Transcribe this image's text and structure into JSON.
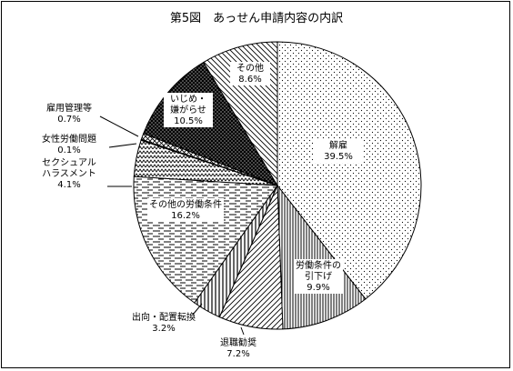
{
  "chart_data": {
    "type": "pie",
    "title": "第5図　あっせん申請内容の内訳",
    "unit": "%",
    "slices": [
      {
        "name": "解雇",
        "value": 39.5,
        "value_label": "39.5%"
      },
      {
        "name": "労働条件の\n引下げ",
        "value": 9.9,
        "value_label": "9.9%"
      },
      {
        "name": "退職勧奨",
        "value": 7.2,
        "value_label": "7.2%"
      },
      {
        "name": "出向・配置転換",
        "value": 3.2,
        "value_label": "3.2%"
      },
      {
        "name": "その他の労働条件",
        "value": 16.2,
        "value_label": "16.2%"
      },
      {
        "name": "セクシュアル\nハラスメント",
        "value": 4.1,
        "value_label": "4.1%"
      },
      {
        "name": "女性労働問題",
        "value": 0.1,
        "value_label": "0.1%"
      },
      {
        "name": "雇用管理等",
        "value": 0.7,
        "value_label": "0.7%"
      },
      {
        "name": "いじめ・\n嫌がらせ",
        "value": 10.5,
        "value_label": "10.5%"
      },
      {
        "name": "その他",
        "value": 8.6,
        "value_label": "8.6%"
      }
    ],
    "start_angle_deg": 0,
    "direction": "clockwise",
    "legend": "none"
  }
}
